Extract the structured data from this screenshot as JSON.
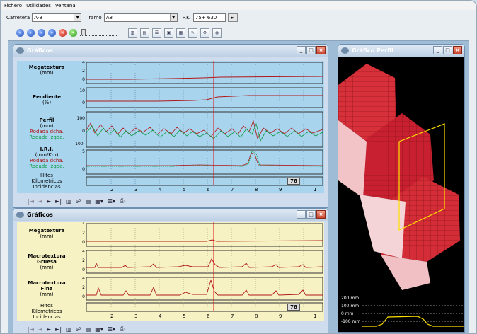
{
  "menu": [
    "Fichero",
    "Utilidades",
    "Ventana"
  ],
  "toolbar": {
    "carretera_label": "Carretera",
    "carretera_value": "A-8",
    "tramo_label": "Tramo",
    "tramo_value": "A8",
    "pk_label": "P.K.",
    "pk_value": "75+ 630",
    "go_symbol": "►"
  },
  "win1": {
    "title": "Gráficos",
    "rows": [
      {
        "title": "Megatextura",
        "unit": "(mm)",
        "ticks": [
          "4",
          "2",
          "0"
        ]
      },
      {
        "title": "Pendiente",
        "unit": "(%)",
        "ticks": [
          "10",
          "0"
        ]
      },
      {
        "title": "Perfil",
        "unit": "(mm)",
        "red": "Rodada dcha.",
        "green": "Rodada izqda.",
        "ticks": [
          "100",
          "0",
          "-100"
        ]
      },
      {
        "title": "I.R.I.",
        "unit": "(mm/Km)",
        "red": "Rodada dcha.",
        "green": "Rodada izqda.",
        "ticks": [
          "5",
          "0"
        ]
      }
    ],
    "footer": [
      "Hitos",
      "Kilométricos",
      "Incidencias"
    ],
    "km": [
      "2",
      "3",
      "4",
      "5",
      "6",
      "7",
      "8",
      "9",
      "1"
    ],
    "marker": "76"
  },
  "win2": {
    "title": "Gráficos",
    "rows": [
      {
        "title": "Megatextura",
        "unit": "(mm)",
        "ticks": [
          "4",
          "2",
          "0"
        ]
      },
      {
        "title": "Macrotextura",
        "title2": "Gruesa",
        "unit": "(mm)",
        "ticks": [
          "4",
          "2",
          "0"
        ]
      },
      {
        "title": "Macrotextura",
        "title2": "Fina",
        "unit": "(mm)",
        "ticks": [
          "4",
          "2",
          "0"
        ]
      }
    ],
    "footer": [
      "Hitos",
      "Kilométricos",
      "Incidencias"
    ],
    "km": [
      "2",
      "3",
      "4",
      "5",
      "6",
      "7",
      "8",
      "9",
      "1"
    ],
    "marker": "76"
  },
  "win3": {
    "title": "Gráfico Perfil",
    "scale": [
      "200 mm",
      "100 mm",
      "0 mm",
      "-100 mm"
    ]
  },
  "colors": {
    "red_trace": "#b01818",
    "green_trace": "#0a9a40",
    "cursor": "#e01010"
  }
}
